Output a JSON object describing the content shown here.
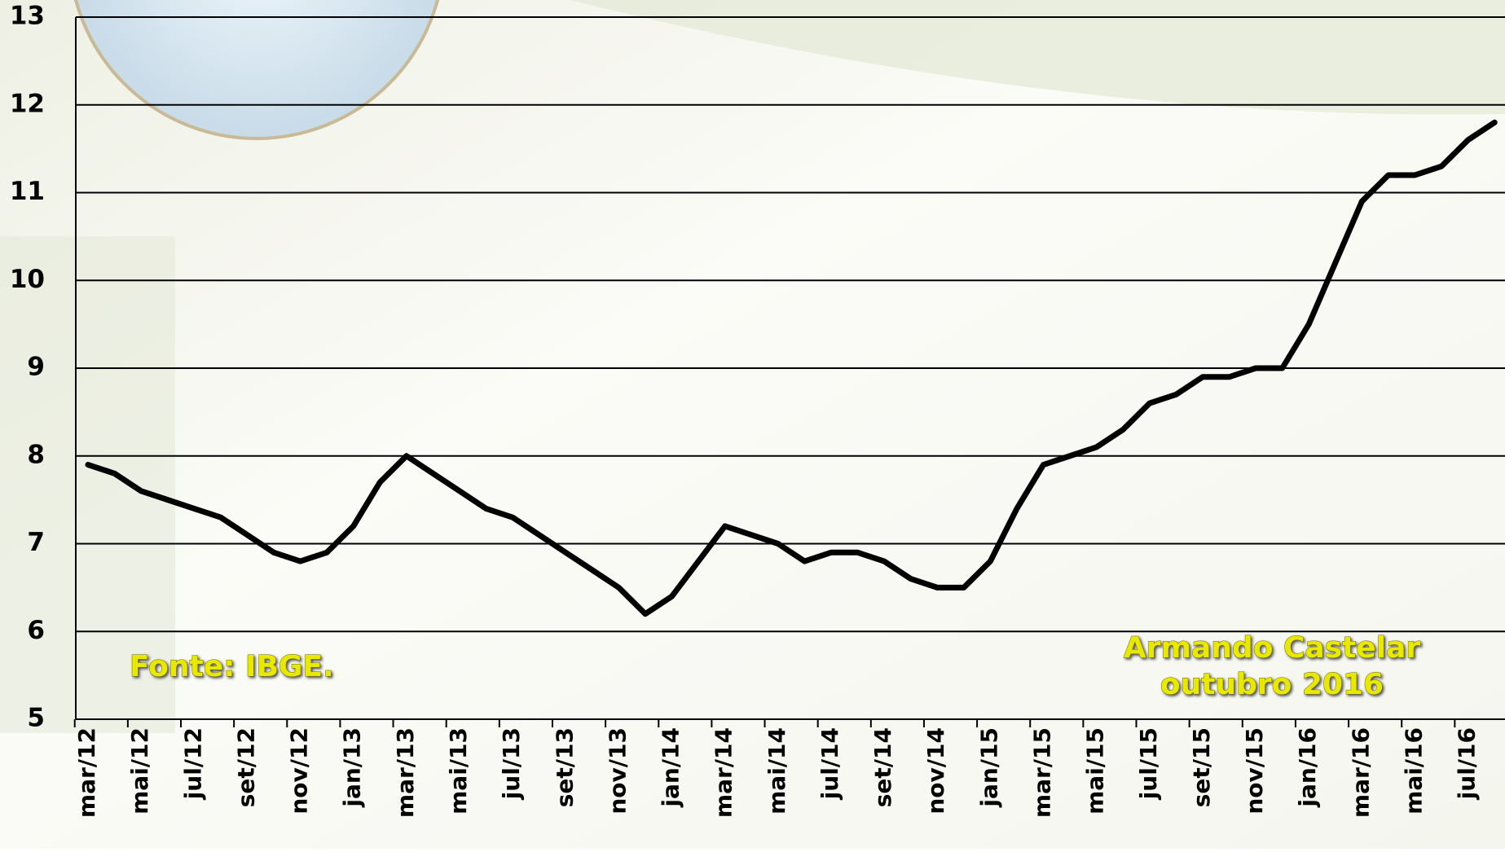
{
  "chart_data": {
    "type": "line",
    "source": "Fonte: IBGE.",
    "annotations": [
      "Armando Castelar",
      "outubro 2016"
    ],
    "categories": [
      "mar/12",
      null,
      "mai/12",
      null,
      "jul/12",
      null,
      "set/12",
      null,
      "nov/12",
      null,
      "jan/13",
      null,
      "mar/13",
      null,
      "mai/13",
      null,
      "jul/13",
      null,
      "set/13",
      null,
      "nov/13",
      null,
      "jan/14",
      null,
      "mar/14",
      null,
      "mai/14",
      null,
      "jul/14",
      null,
      "set/14",
      null,
      "nov/14",
      null,
      "jan/15",
      null,
      "mar/15",
      null,
      "mai/15",
      null,
      "jul/15",
      null,
      "set/15",
      null,
      "nov/15",
      null,
      "jan/16",
      null,
      "mar/16",
      null,
      "mai/16",
      null,
      "jul/16",
      null
    ],
    "series": [
      {
        "color": "#000000",
        "values": [
          7.9,
          7.8,
          7.6,
          7.5,
          7.4,
          7.3,
          7.1,
          6.9,
          6.8,
          6.9,
          7.2,
          7.7,
          8.0,
          7.8,
          7.6,
          7.4,
          7.3,
          7.1,
          6.9,
          6.7,
          6.5,
          6.2,
          6.4,
          6.8,
          7.2,
          7.1,
          7.0,
          6.8,
          6.9,
          6.9,
          6.8,
          6.6,
          6.5,
          6.5,
          6.8,
          7.4,
          7.9,
          8.0,
          8.1,
          8.3,
          8.6,
          8.7,
          8.9,
          8.9,
          9.0,
          9.0,
          9.5,
          10.2,
          10.9,
          11.2,
          11.2,
          11.3,
          11.6,
          11.8
        ]
      }
    ],
    "ylim": [
      5,
      13
    ],
    "yticks": [
      5,
      6,
      7,
      8,
      9,
      10,
      11,
      12,
      13
    ],
    "grid": true
  }
}
